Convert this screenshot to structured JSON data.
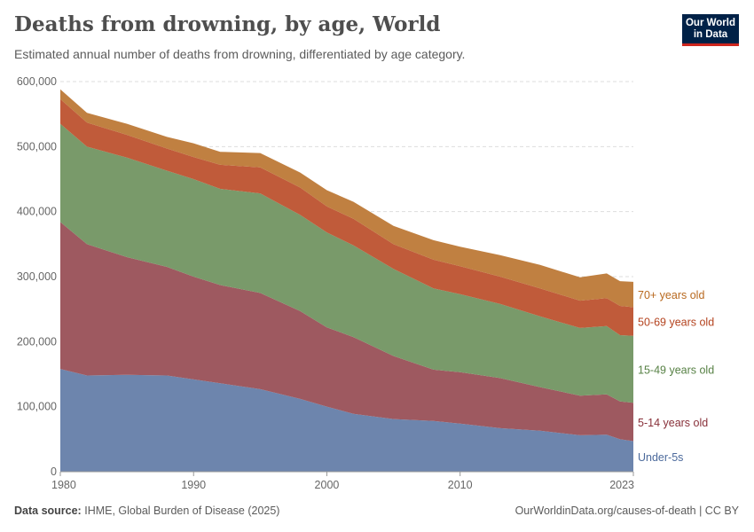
{
  "header": {
    "title": "Deaths from drowning, by age, World",
    "subtitle": "Estimated annual number of deaths from drowning, differentiated by age category.",
    "logo_line1": "Our World",
    "logo_line2": "in Data"
  },
  "footer": {
    "source_label": "Data source:",
    "source": "IHME, Global Burden of Disease (2025)",
    "link": "OurWorldinData.org/causes-of-death | CC BY"
  },
  "chart_data": {
    "type": "area",
    "stacked": true,
    "title": "Deaths from drowning, by age, World",
    "xlabel": "",
    "ylabel": "",
    "xlim": [
      1980,
      2023
    ],
    "ylim": [
      0,
      600000
    ],
    "x_ticks": [
      "1980",
      "1990",
      "2000",
      "2010",
      "2023"
    ],
    "y_ticks": [
      "0",
      "100,000",
      "200,000",
      "300,000",
      "400,000",
      "500,000",
      "600,000"
    ],
    "grid": "horizontal dashed",
    "legend": "right, inline labels",
    "x": [
      1980,
      1982,
      1985,
      1988,
      1990,
      1992,
      1995,
      1998,
      2000,
      2002,
      2005,
      2008,
      2010,
      2013,
      2016,
      2019,
      2021,
      2022,
      2023
    ],
    "series": [
      {
        "name": "Under-5s",
        "color": "#6d85ad",
        "label_color": "#4c6a9c",
        "values": [
          158000,
          148000,
          149000,
          148000,
          142000,
          136000,
          127000,
          112000,
          100000,
          89000,
          81000,
          78000,
          74000,
          67000,
          63000,
          56000,
          57000,
          50000,
          47000
        ]
      },
      {
        "name": "5-14 years old",
        "color": "#9e5960",
        "label_color": "#883039",
        "values": [
          226000,
          202000,
          181000,
          167000,
          158000,
          151000,
          148000,
          135000,
          122000,
          118000,
          97000,
          79000,
          79000,
          77000,
          67000,
          61000,
          62000,
          58000,
          59000
        ]
      },
      {
        "name": "15-49 years old",
        "color": "#799a6a",
        "label_color": "#578145",
        "values": [
          151000,
          150000,
          153000,
          148000,
          150000,
          148000,
          153000,
          148000,
          146000,
          141000,
          134000,
          125000,
          120000,
          114000,
          109000,
          104000,
          105000,
          102000,
          103000
        ]
      },
      {
        "name": "50-69 years old",
        "color": "#c05b3a",
        "label_color": "#b4431f",
        "values": [
          38000,
          37000,
          35000,
          34000,
          34000,
          37000,
          40000,
          42000,
          40000,
          41000,
          38000,
          44000,
          43000,
          42000,
          43000,
          42000,
          43000,
          45000,
          44000
        ]
      },
      {
        "name": "70+ years old",
        "color": "#c08041",
        "label_color": "#b8691f",
        "values": [
          15000,
          15000,
          17000,
          18000,
          21000,
          20000,
          22000,
          23000,
          25000,
          26000,
          28000,
          30000,
          30000,
          33000,
          36000,
          36000,
          38000,
          38000,
          39000
        ]
      }
    ]
  }
}
